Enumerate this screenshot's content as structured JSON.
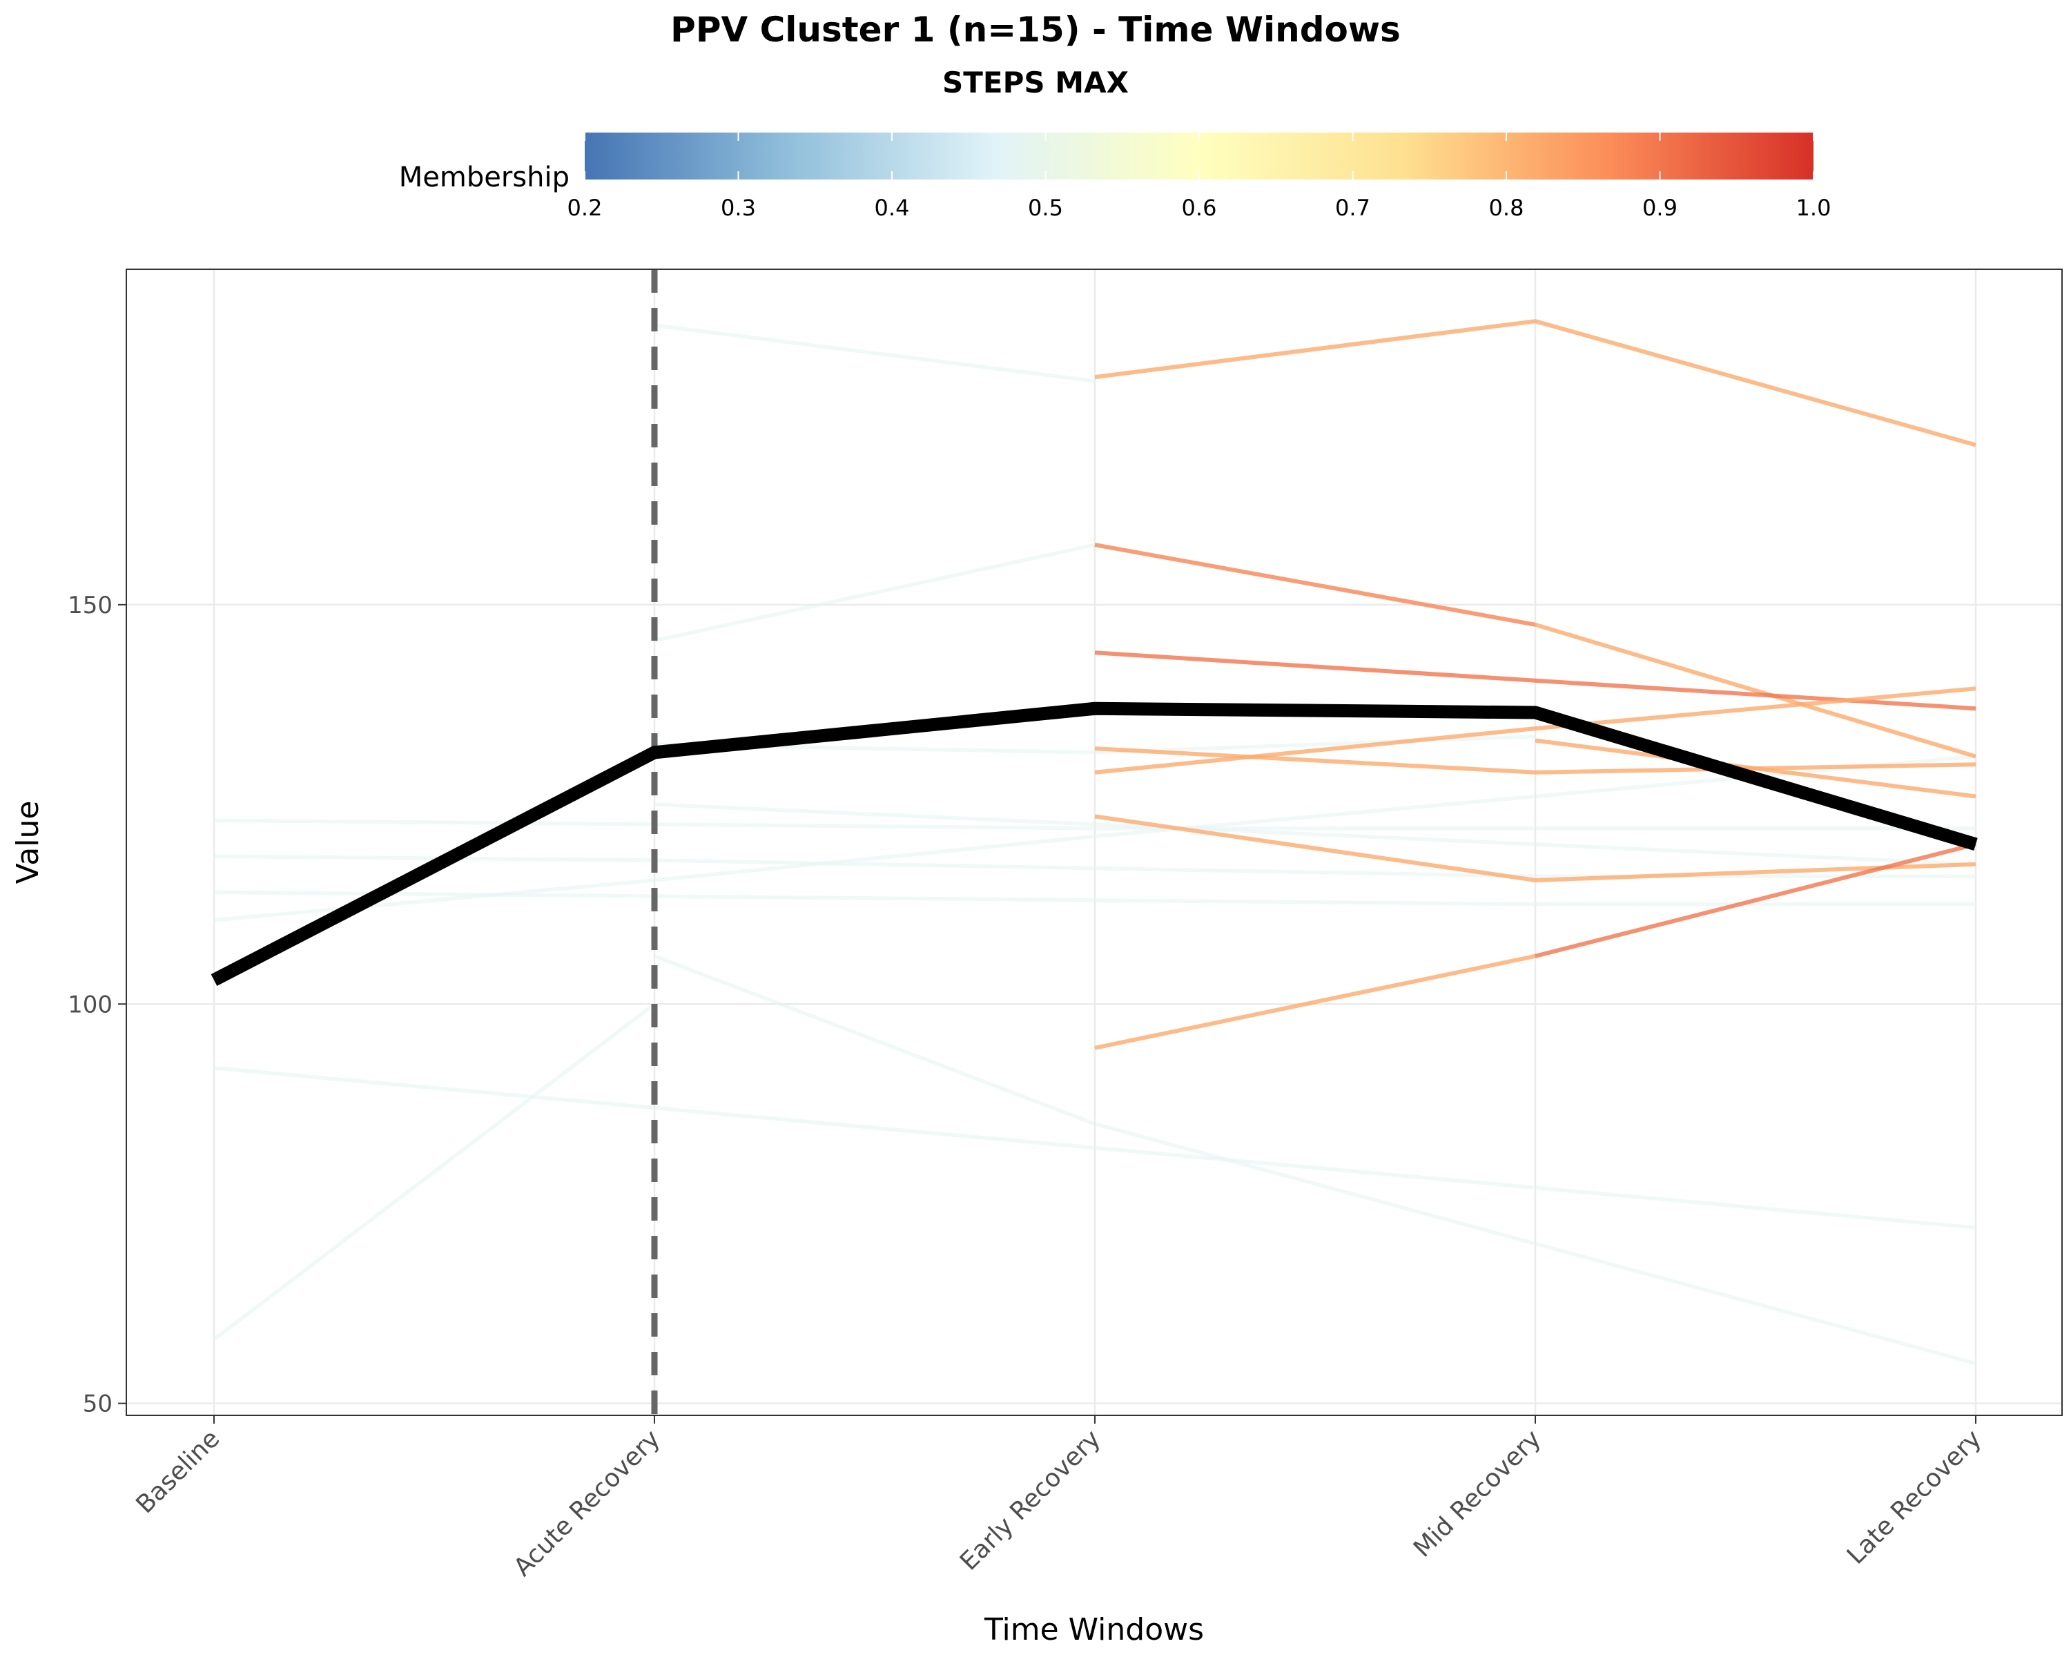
{
  "chart_data": {
    "type": "line",
    "title": "PPV Cluster 1 (n=15) - Time Windows",
    "subtitle": "STEPS MAX",
    "xlabel": "Time Windows",
    "ylabel": "Value",
    "categories": [
      "Baseline",
      "Acute Recovery",
      "Early Recovery",
      "Mid Recovery",
      "Late Recovery"
    ],
    "ylim": [
      48.5,
      192
    ],
    "yticks": [
      50,
      100,
      150
    ],
    "grid": true,
    "reference_line": {
      "x": "Acute Recovery",
      "style": "dashed",
      "color": "#666666"
    },
    "colorbar": {
      "title": "Membership",
      "range": [
        0.2,
        1.0
      ],
      "ticks": [
        "0.2",
        "0.3",
        "0.4",
        "0.5",
        "0.6",
        "0.7",
        "0.8",
        "0.9",
        "1.0"
      ],
      "colors": [
        "#4575b4",
        "#91bfdb",
        "#e0f3f8",
        "#ffffbf",
        "#fee090",
        "#fc8d59",
        "#d73027"
      ],
      "placement": "top"
    },
    "series": [
      {
        "membership": 0.48,
        "values": [
          null,
          185,
          178,
          null,
          null
        ]
      },
      {
        "membership": 0.48,
        "values": [
          null,
          145.5,
          157.5,
          null,
          null
        ]
      },
      {
        "membership": 0.48,
        "values": [
          123,
          122.5,
          122,
          122,
          122
        ]
      },
      {
        "membership": 0.48,
        "values": [
          118.5,
          118,
          117,
          116,
          116
        ]
      },
      {
        "membership": 0.48,
        "values": [
          114,
          113.5,
          113,
          112.5,
          112.5
        ]
      },
      {
        "membership": 0.48,
        "values": [
          110.5,
          115.5,
          121,
          126,
          131
        ]
      },
      {
        "membership": 0.48,
        "values": [
          null,
          132.5,
          131.5,
          133.5,
          null
        ]
      },
      {
        "membership": 0.48,
        "values": [
          null,
          125,
          122.5,
          120,
          117.5
        ]
      },
      {
        "membership": 0.48,
        "values": [
          92,
          87,
          82,
          77,
          72
        ]
      },
      {
        "membership": 0.48,
        "values": [
          58,
          100,
          null,
          null,
          null
        ]
      },
      {
        "membership": 0.48,
        "values": [
          null,
          106,
          85,
          70,
          55
        ]
      },
      {
        "membership": 0.48,
        "values": [
          null,
          100,
          null,
          null,
          null
        ]
      },
      {
        "membership": 0.82,
        "values": [
          null,
          null,
          178.5,
          185.5,
          170
        ]
      },
      {
        "membership": 0.88,
        "values": [
          null,
          null,
          157.5,
          147.5,
          null
        ]
      },
      {
        "membership": 0.82,
        "values": [
          null,
          null,
          null,
          147.5,
          131
        ]
      },
      {
        "membership": 0.9,
        "values": [
          null,
          null,
          144,
          140.5,
          137
        ]
      },
      {
        "membership": 0.82,
        "values": [
          null,
          null,
          129,
          134.5,
          139.5
        ]
      },
      {
        "membership": 0.82,
        "values": [
          null,
          null,
          132,
          129,
          130
        ]
      },
      {
        "membership": 0.82,
        "values": [
          null,
          null,
          null,
          133,
          126
        ]
      },
      {
        "membership": 0.82,
        "values": [
          null,
          null,
          123.5,
          115.5,
          117.5
        ]
      },
      {
        "membership": 0.82,
        "values": [
          null,
          null,
          94.5,
          106,
          null
        ]
      },
      {
        "membership": 0.9,
        "values": [
          null,
          null,
          null,
          106,
          120
        ]
      }
    ],
    "centroid": {
      "name": "cluster centroid",
      "color": "#000000",
      "values": [
        103,
        131.5,
        137,
        136.5,
        120
      ]
    }
  }
}
